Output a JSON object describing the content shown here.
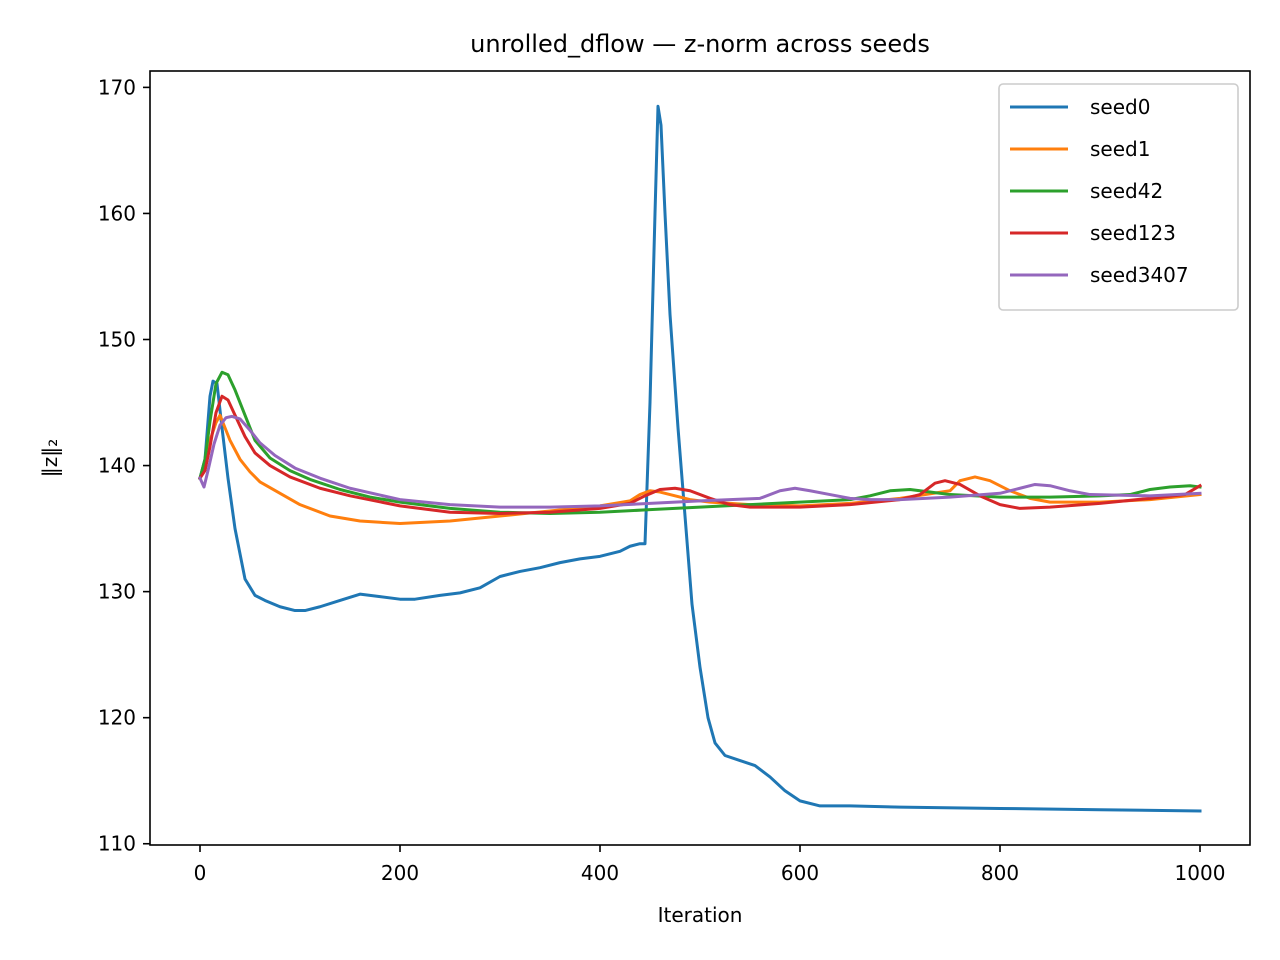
{
  "chart_data": {
    "type": "line",
    "title": "unrolled_dflow — z-norm across seeds",
    "xlabel": "Iteration",
    "ylabel": "‖z‖₂",
    "xlim": [
      -50,
      1050
    ],
    "ylim": [
      109.9,
      171.3
    ],
    "xticks": [
      0,
      200,
      400,
      600,
      800,
      1000
    ],
    "yticks": [
      110,
      120,
      130,
      140,
      150,
      160,
      170
    ],
    "grid": false,
    "legend_position": "top-right",
    "series": [
      {
        "name": "seed0",
        "color": "#1f77b4",
        "points": [
          [
            0,
            139
          ],
          [
            5,
            140.5
          ],
          [
            10,
            145.5
          ],
          [
            13,
            146.7
          ],
          [
            17,
            146.5
          ],
          [
            22,
            143
          ],
          [
            28,
            139
          ],
          [
            35,
            135
          ],
          [
            45,
            131
          ],
          [
            55,
            129.7
          ],
          [
            65,
            129.3
          ],
          [
            80,
            128.8
          ],
          [
            95,
            128.5
          ],
          [
            105,
            128.5
          ],
          [
            120,
            128.8
          ],
          [
            140,
            129.3
          ],
          [
            160,
            129.8
          ],
          [
            180,
            129.6
          ],
          [
            200,
            129.4
          ],
          [
            215,
            129.4
          ],
          [
            240,
            129.7
          ],
          [
            260,
            129.9
          ],
          [
            280,
            130.3
          ],
          [
            300,
            131.2
          ],
          [
            320,
            131.6
          ],
          [
            340,
            131.9
          ],
          [
            360,
            132.3
          ],
          [
            380,
            132.6
          ],
          [
            400,
            132.8
          ],
          [
            420,
            133.2
          ],
          [
            430,
            133.6
          ],
          [
            440,
            133.8
          ],
          [
            445,
            133.8
          ],
          [
            450,
            145
          ],
          [
            455,
            160
          ],
          [
            458,
            168.5
          ],
          [
            461,
            167
          ],
          [
            465,
            160
          ],
          [
            470,
            152
          ],
          [
            478,
            143
          ],
          [
            485,
            136
          ],
          [
            492,
            129
          ],
          [
            500,
            124
          ],
          [
            508,
            120
          ],
          [
            515,
            118
          ],
          [
            525,
            117
          ],
          [
            540,
            116.6
          ],
          [
            555,
            116.2
          ],
          [
            570,
            115.3
          ],
          [
            585,
            114.2
          ],
          [
            600,
            113.4
          ],
          [
            620,
            113
          ],
          [
            650,
            113
          ],
          [
            700,
            112.9
          ],
          [
            800,
            112.8
          ],
          [
            900,
            112.7
          ],
          [
            1000,
            112.6
          ]
        ]
      },
      {
        "name": "seed1",
        "color": "#ff7f0e",
        "points": [
          [
            0,
            139
          ],
          [
            5,
            140
          ],
          [
            10,
            142
          ],
          [
            16,
            143.4
          ],
          [
            20,
            144
          ],
          [
            25,
            143
          ],
          [
            30,
            142
          ],
          [
            40,
            140.5
          ],
          [
            50,
            139.5
          ],
          [
            60,
            138.7
          ],
          [
            80,
            137.8
          ],
          [
            100,
            136.9
          ],
          [
            130,
            136
          ],
          [
            160,
            135.6
          ],
          [
            200,
            135.4
          ],
          [
            250,
            135.6
          ],
          [
            300,
            136
          ],
          [
            350,
            136.4
          ],
          [
            400,
            136.8
          ],
          [
            430,
            137.2
          ],
          [
            440,
            137.7
          ],
          [
            450,
            138
          ],
          [
            460,
            137.9
          ],
          [
            470,
            137.7
          ],
          [
            490,
            137.3
          ],
          [
            510,
            137.1
          ],
          [
            550,
            136.9
          ],
          [
            600,
            136.8
          ],
          [
            650,
            137
          ],
          [
            700,
            137.4
          ],
          [
            750,
            138
          ],
          [
            760,
            138.8
          ],
          [
            775,
            139.1
          ],
          [
            790,
            138.8
          ],
          [
            810,
            138
          ],
          [
            830,
            137.4
          ],
          [
            850,
            137.1
          ],
          [
            900,
            137.1
          ],
          [
            950,
            137.3
          ],
          [
            1000,
            137.7
          ]
        ]
      },
      {
        "name": "seed42",
        "color": "#2ca02c",
        "points": [
          [
            0,
            139
          ],
          [
            5,
            140.5
          ],
          [
            10,
            143.5
          ],
          [
            16,
            146.5
          ],
          [
            22,
            147.4
          ],
          [
            28,
            147.2
          ],
          [
            35,
            146
          ],
          [
            45,
            144
          ],
          [
            55,
            142
          ],
          [
            70,
            140.6
          ],
          [
            90,
            139.6
          ],
          [
            110,
            138.9
          ],
          [
            140,
            138.1
          ],
          [
            170,
            137.5
          ],
          [
            200,
            137.1
          ],
          [
            250,
            136.6
          ],
          [
            300,
            136.3
          ],
          [
            350,
            136.2
          ],
          [
            400,
            136.3
          ],
          [
            450,
            136.5
          ],
          [
            500,
            136.7
          ],
          [
            550,
            136.9
          ],
          [
            600,
            137.1
          ],
          [
            650,
            137.3
          ],
          [
            670,
            137.6
          ],
          [
            690,
            138
          ],
          [
            710,
            138.1
          ],
          [
            730,
            137.9
          ],
          [
            750,
            137.7
          ],
          [
            800,
            137.5
          ],
          [
            850,
            137.5
          ],
          [
            900,
            137.6
          ],
          [
            930,
            137.7
          ],
          [
            950,
            138.1
          ],
          [
            970,
            138.3
          ],
          [
            990,
            138.4
          ],
          [
            1000,
            138.3
          ]
        ]
      },
      {
        "name": "seed123",
        "color": "#d62728",
        "points": [
          [
            0,
            139
          ],
          [
            5,
            139.6
          ],
          [
            10,
            141.5
          ],
          [
            16,
            144.2
          ],
          [
            22,
            145.5
          ],
          [
            28,
            145.2
          ],
          [
            35,
            144
          ],
          [
            45,
            142.3
          ],
          [
            55,
            141
          ],
          [
            70,
            140
          ],
          [
            90,
            139.1
          ],
          [
            120,
            138.2
          ],
          [
            150,
            137.6
          ],
          [
            200,
            136.8
          ],
          [
            250,
            136.3
          ],
          [
            300,
            136.2
          ],
          [
            350,
            136.3
          ],
          [
            400,
            136.6
          ],
          [
            430,
            137
          ],
          [
            445,
            137.6
          ],
          [
            460,
            138.1
          ],
          [
            475,
            138.2
          ],
          [
            490,
            138
          ],
          [
            510,
            137.4
          ],
          [
            530,
            136.9
          ],
          [
            550,
            136.7
          ],
          [
            600,
            136.7
          ],
          [
            650,
            136.9
          ],
          [
            700,
            137.3
          ],
          [
            720,
            137.7
          ],
          [
            735,
            138.6
          ],
          [
            745,
            138.8
          ],
          [
            760,
            138.5
          ],
          [
            780,
            137.6
          ],
          [
            800,
            136.9
          ],
          [
            820,
            136.6
          ],
          [
            850,
            136.7
          ],
          [
            900,
            137
          ],
          [
            950,
            137.4
          ],
          [
            985,
            137.7
          ],
          [
            1000,
            138.4
          ]
        ]
      },
      {
        "name": "seed3407",
        "color": "#9467bd",
        "points": [
          [
            0,
            139
          ],
          [
            4,
            138.3
          ],
          [
            8,
            139.6
          ],
          [
            14,
            141.7
          ],
          [
            20,
            143.2
          ],
          [
            26,
            143.8
          ],
          [
            32,
            143.9
          ],
          [
            40,
            143.7
          ],
          [
            50,
            142.8
          ],
          [
            60,
            141.8
          ],
          [
            75,
            140.8
          ],
          [
            95,
            139.8
          ],
          [
            120,
            139
          ],
          [
            150,
            138.2
          ],
          [
            200,
            137.3
          ],
          [
            250,
            136.9
          ],
          [
            300,
            136.7
          ],
          [
            350,
            136.7
          ],
          [
            400,
            136.8
          ],
          [
            450,
            137
          ],
          [
            500,
            137.2
          ],
          [
            560,
            137.4
          ],
          [
            580,
            138
          ],
          [
            595,
            138.2
          ],
          [
            610,
            138
          ],
          [
            630,
            137.7
          ],
          [
            650,
            137.4
          ],
          [
            670,
            137.3
          ],
          [
            700,
            137.3
          ],
          [
            750,
            137.5
          ],
          [
            800,
            137.8
          ],
          [
            820,
            138.2
          ],
          [
            835,
            138.5
          ],
          [
            850,
            138.4
          ],
          [
            870,
            138
          ],
          [
            890,
            137.7
          ],
          [
            950,
            137.6
          ],
          [
            1000,
            137.8
          ]
        ]
      }
    ]
  }
}
